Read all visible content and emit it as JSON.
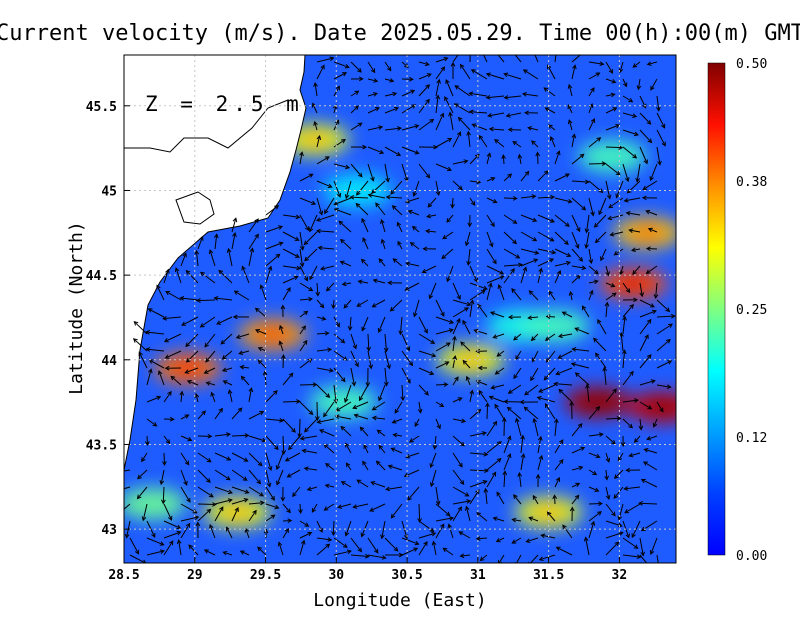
{
  "chart_data": {
    "type": "heatmap",
    "title": "Current velocity (m/s). Date 2025.05.29. Time 00(h):00(m) GMT",
    "annotation": "Z = 2.5 m",
    "xlabel": "Longitude (East)",
    "ylabel": "Latitude (North)",
    "xlim": [
      28.5,
      32.4
    ],
    "ylim": [
      42.8,
      45.8
    ],
    "x_ticks": [
      28.5,
      29,
      29.5,
      30,
      30.5,
      31,
      31.5,
      32
    ],
    "y_ticks": [
      43,
      43.5,
      44,
      44.5,
      45,
      45.5
    ],
    "grid": true,
    "colorbar": {
      "ticks": [
        0.0,
        0.12,
        0.25,
        0.38,
        0.5
      ],
      "tick_labels": [
        "0.00",
        "0.12",
        "0.25",
        "0.38",
        "0.50"
      ],
      "colormap": "jet",
      "min": 0.0,
      "max": 0.5,
      "placement": "right"
    },
    "land_color": "#ffffff",
    "sea_background_color": "#1f5cff",
    "speed_hotspots": [
      {
        "lon": 28.95,
        "lat": 43.95,
        "speed": 0.38
      },
      {
        "lon": 29.55,
        "lat": 44.15,
        "speed": 0.36
      },
      {
        "lon": 29.3,
        "lat": 43.1,
        "speed": 0.3
      },
      {
        "lon": 28.7,
        "lat": 43.15,
        "speed": 0.24
      },
      {
        "lon": 30.05,
        "lat": 43.75,
        "speed": 0.22
      },
      {
        "lon": 30.95,
        "lat": 44.0,
        "speed": 0.3
      },
      {
        "lon": 31.3,
        "lat": 44.2,
        "speed": 0.2
      },
      {
        "lon": 31.85,
        "lat": 43.75,
        "speed": 0.48
      },
      {
        "lon": 32.3,
        "lat": 43.72,
        "speed": 0.46
      },
      {
        "lon": 32.1,
        "lat": 44.45,
        "speed": 0.4
      },
      {
        "lon": 32.2,
        "lat": 44.75,
        "speed": 0.34
      },
      {
        "lon": 31.55,
        "lat": 44.2,
        "speed": 0.22
      },
      {
        "lon": 31.5,
        "lat": 43.1,
        "speed": 0.3
      },
      {
        "lon": 31.95,
        "lat": 45.2,
        "speed": 0.22
      },
      {
        "lon": 29.85,
        "lat": 45.3,
        "speed": 0.3
      },
      {
        "lon": 30.15,
        "lat": 45.0,
        "speed": 0.18
      }
    ]
  }
}
